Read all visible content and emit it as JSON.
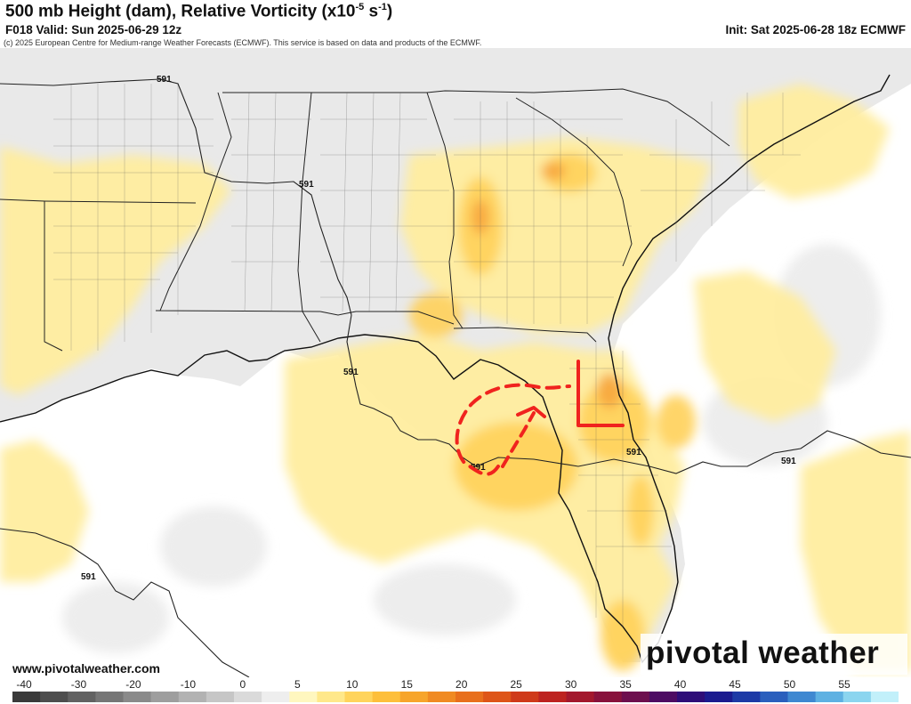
{
  "header": {
    "title_main": "500 mb Height (dam), Relative Vorticity (x10",
    "title_exp": "-5",
    "title_unit": " s",
    "title_unit_exp": "-1",
    "title_close": ")",
    "valid": "F018 Valid: Sun 2025-06-29 12z",
    "init": "Init: Sat 2025-06-28 18z ECMWF",
    "copyright": "(c) 2025 European Centre for Medium-range Weather Forecasts (ECMWF). This service is based on data and products of the ECMWF."
  },
  "footer": {
    "website": "www.pivotalweather.com",
    "brand": "pivotal weather"
  },
  "contour_label": "591",
  "colorbar": {
    "labels": [
      "-40",
      "-30",
      "-20",
      "-10",
      "0",
      "5",
      "10",
      "15",
      "20",
      "25",
      "30",
      "35",
      "40",
      "45",
      "50",
      "55"
    ],
    "colors": [
      "#3a3a3a",
      "#4e4e4e",
      "#626262",
      "#767676",
      "#8a8a8a",
      "#9e9e9e",
      "#b2b2b2",
      "#c6c6c6",
      "#dadada",
      "#eeeeee",
      "#fff7bf",
      "#ffe88a",
      "#ffd45c",
      "#fdbf3b",
      "#f7a52b",
      "#f08a22",
      "#e86f1c",
      "#de5518",
      "#cf3a1a",
      "#bd2320",
      "#a3182d",
      "#88123c",
      "#6d0f4e",
      "#4d0c63",
      "#2e0d78",
      "#1b1b8f",
      "#1d3aa6",
      "#2a5fbd",
      "#3f88d1",
      "#5eb1e2",
      "#8bd5ef",
      "#c2f0fa"
    ]
  },
  "icons": {
    "pivotal_gear": "gear-icon"
  }
}
